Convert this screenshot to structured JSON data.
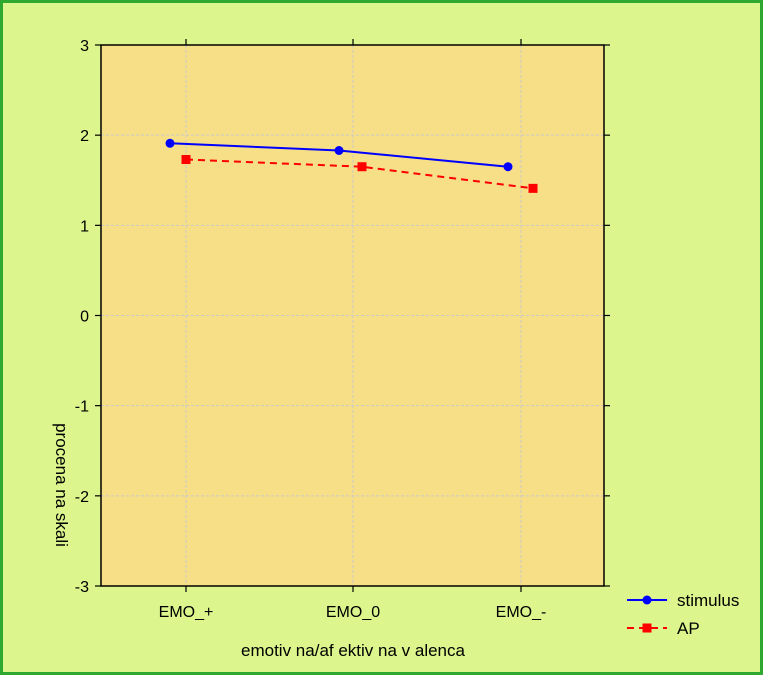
{
  "colors": {
    "outer_background": "#dcf58c",
    "outer_border": "#2ea82e",
    "plot_background": "#f7df88",
    "grid": "#c9c9c9",
    "axis": "#000000"
  },
  "chart_data": {
    "type": "line",
    "categories": [
      "EMO_+",
      "EMO_0",
      "EMO_-"
    ],
    "xlabel": "emotiv na/af ektiv na v alenca",
    "ylabel": "procena na skali",
    "ylim": [
      -3,
      3
    ],
    "yticks": [
      -3,
      -2,
      -1,
      0,
      1,
      2,
      3
    ],
    "grid": true,
    "legend_position": "bottom-right outside",
    "series": [
      {
        "name": "stimulus",
        "values": [
          1.91,
          1.83,
          1.65
        ],
        "color": "#0000ff",
        "line_style": "solid",
        "marker": "circle"
      },
      {
        "name": "AP",
        "values": [
          1.73,
          1.65,
          1.41
        ],
        "color": "#ff0000",
        "line_style": "dashed",
        "marker": "square"
      }
    ]
  }
}
